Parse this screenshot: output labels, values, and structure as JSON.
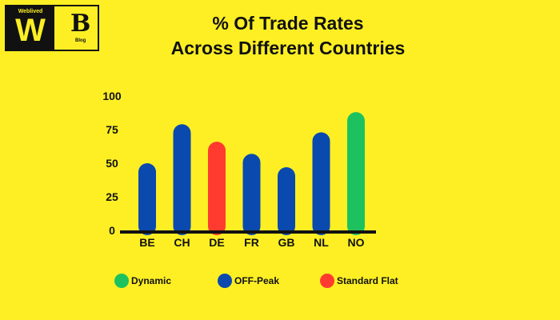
{
  "logo": {
    "w_caption": "Weblived",
    "w_letter": "W",
    "b_letter": "B",
    "b_caption": "Blog"
  },
  "title_lines": [
    "% Of Trade Rates",
    "Across Different Countries"
  ],
  "chart_data": {
    "type": "bar",
    "title": "% Of Trade Rates Across Different Countries",
    "categories": [
      "BE",
      "CH",
      "DE",
      "FR",
      "GB",
      "NL",
      "NO"
    ],
    "values": [
      50,
      79,
      66,
      57,
      47,
      73,
      88
    ],
    "bar_types": [
      "OFF-Peak",
      "OFF-Peak",
      "Standard Flat",
      "OFF-Peak",
      "OFF-Peak",
      "OFF-Peak",
      "Dynamic"
    ],
    "ylim": [
      0,
      100
    ],
    "yticks": [
      0,
      25,
      50,
      75,
      100
    ],
    "grid": false,
    "legend_position": "bottom",
    "legend": [
      {
        "label": "Dynamic",
        "color": "#1DC25F"
      },
      {
        "label": "OFF-Peak",
        "color": "#0A4AAE"
      },
      {
        "label": "Standard Flat",
        "color": "#FF3B30"
      }
    ]
  }
}
